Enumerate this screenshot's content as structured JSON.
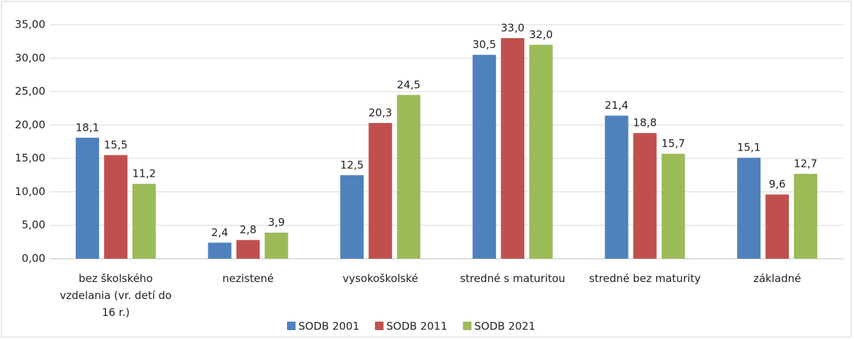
{
  "chart_data": {
    "type": "bar",
    "categories": [
      "bez školského vzdelania (vr. detí do 16 r.)",
      "nezistené",
      "vysokoškolské",
      "stredné s maturitou",
      "stredné bez maturity",
      "základné"
    ],
    "series": [
      {
        "name": "SODB 2001",
        "color": "#4f81bd",
        "values": [
          18.1,
          2.4,
          12.5,
          30.5,
          21.4,
          15.1
        ],
        "value_labels": [
          "18,1",
          "2,4",
          "12,5",
          "30,5",
          "21,4",
          "15,1"
        ]
      },
      {
        "name": "SODB 2011",
        "color": "#c0504d",
        "values": [
          15.5,
          2.8,
          20.3,
          33.0,
          18.8,
          9.6
        ],
        "value_labels": [
          "15,5",
          "2,8",
          "20,3",
          "33,0",
          "18,8",
          "9,6"
        ]
      },
      {
        "name": "SODB 2021",
        "color": "#9bbb59",
        "values": [
          11.2,
          3.9,
          24.5,
          32.0,
          15.7,
          12.7
        ],
        "value_labels": [
          "11,2",
          "3,9",
          "24,5",
          "32,0",
          "15,7",
          "12,7"
        ]
      }
    ],
    "ylim": [
      0,
      35
    ],
    "yticks": [
      {
        "value": 0,
        "label": "0,00"
      },
      {
        "value": 5,
        "label": "5,00"
      },
      {
        "value": 10,
        "label": "10,00"
      },
      {
        "value": 15,
        "label": "15,00"
      },
      {
        "value": 20,
        "label": "20,00"
      },
      {
        "value": 25,
        "label": "25,00"
      },
      {
        "value": 30,
        "label": "30,00"
      },
      {
        "value": 35,
        "label": "35,00"
      }
    ],
    "grid": true,
    "legend": "bottom"
  }
}
